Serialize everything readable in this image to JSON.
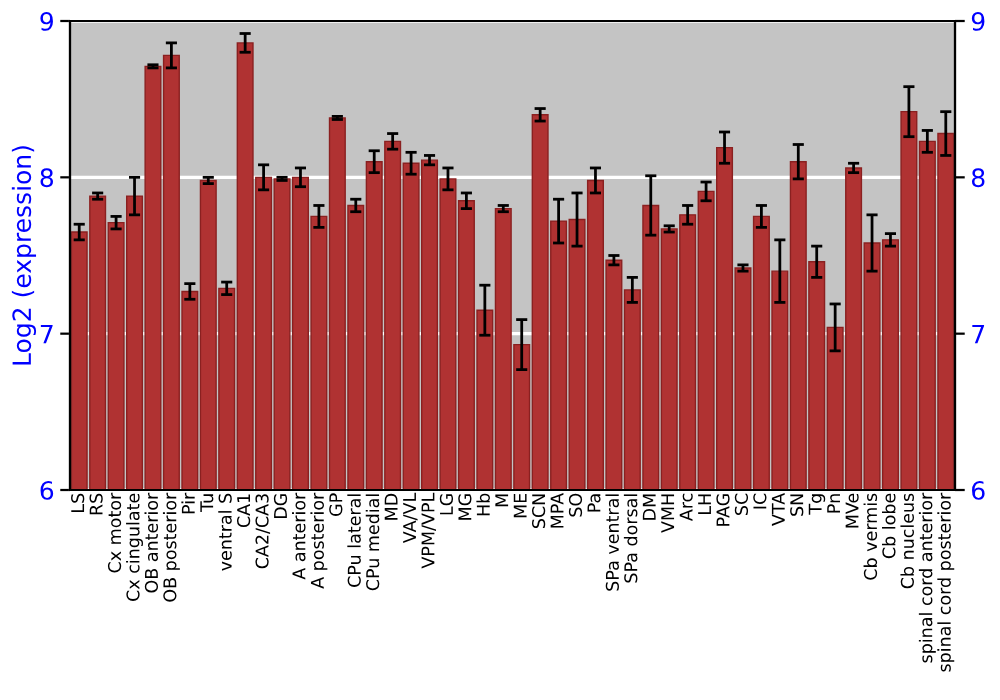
{
  "chart_data": {
    "type": "bar",
    "ylabel": "Log2 (expression)",
    "categories": [
      "LS",
      "RS",
      "Cx motor",
      "Cx cingulate",
      "OB anterior",
      "OB posterior",
      "Pir",
      "Tu",
      "ventral S",
      "CA1",
      "CA2/CA3",
      "DG",
      "A anterior",
      "A posterior",
      "GP",
      "CPu lateral",
      "CPu medial",
      "MD",
      "VA/VL",
      "VPM/VPL",
      "LG",
      "MG",
      "Hb",
      "M",
      "ME",
      "SCN",
      "MPA",
      "SO",
      "Pa",
      "SPa ventral",
      "SPa dorsal",
      "DM",
      "VMH",
      "Arc",
      "LH",
      "PAG",
      "SC",
      "IC",
      "VTA",
      "SN",
      "Tg",
      "Pn",
      "MVe",
      "Cb vermis",
      "Cb lobe",
      "Cb nucleus",
      "spinal cord anterior",
      "spinal cord posterior"
    ],
    "values": [
      7.65,
      7.88,
      7.71,
      7.88,
      8.71,
      8.78,
      7.27,
      7.98,
      7.29,
      8.86,
      8.0,
      7.99,
      8.0,
      7.75,
      8.38,
      7.82,
      8.1,
      8.23,
      8.09,
      8.11,
      7.99,
      7.85,
      7.15,
      7.8,
      6.93,
      8.4,
      7.72,
      7.73,
      7.98,
      7.47,
      7.28,
      7.82,
      7.67,
      7.76,
      7.91,
      8.19,
      7.42,
      7.75,
      7.4,
      8.1,
      7.46,
      7.04,
      8.06,
      7.58,
      7.6,
      8.42,
      8.23,
      8.28
    ],
    "errors": [
      0.05,
      0.02,
      0.04,
      0.12,
      0.01,
      0.08,
      0.05,
      0.02,
      0.04,
      0.06,
      0.08,
      0.01,
      0.06,
      0.07,
      0.01,
      0.04,
      0.07,
      0.05,
      0.07,
      0.03,
      0.07,
      0.05,
      0.16,
      0.02,
      0.16,
      0.04,
      0.14,
      0.17,
      0.08,
      0.03,
      0.08,
      0.19,
      0.02,
      0.06,
      0.06,
      0.1,
      0.02,
      0.07,
      0.2,
      0.11,
      0.1,
      0.15,
      0.03,
      0.18,
      0.04,
      0.16,
      0.07,
      0.14
    ],
    "color": "#b03232",
    "ylim": [
      6,
      9
    ],
    "yticks": [
      6,
      7,
      8,
      9
    ],
    "y2lim": [
      6,
      9
    ],
    "y2ticks": [
      6,
      7,
      8,
      9
    ],
    "grid": "y"
  }
}
